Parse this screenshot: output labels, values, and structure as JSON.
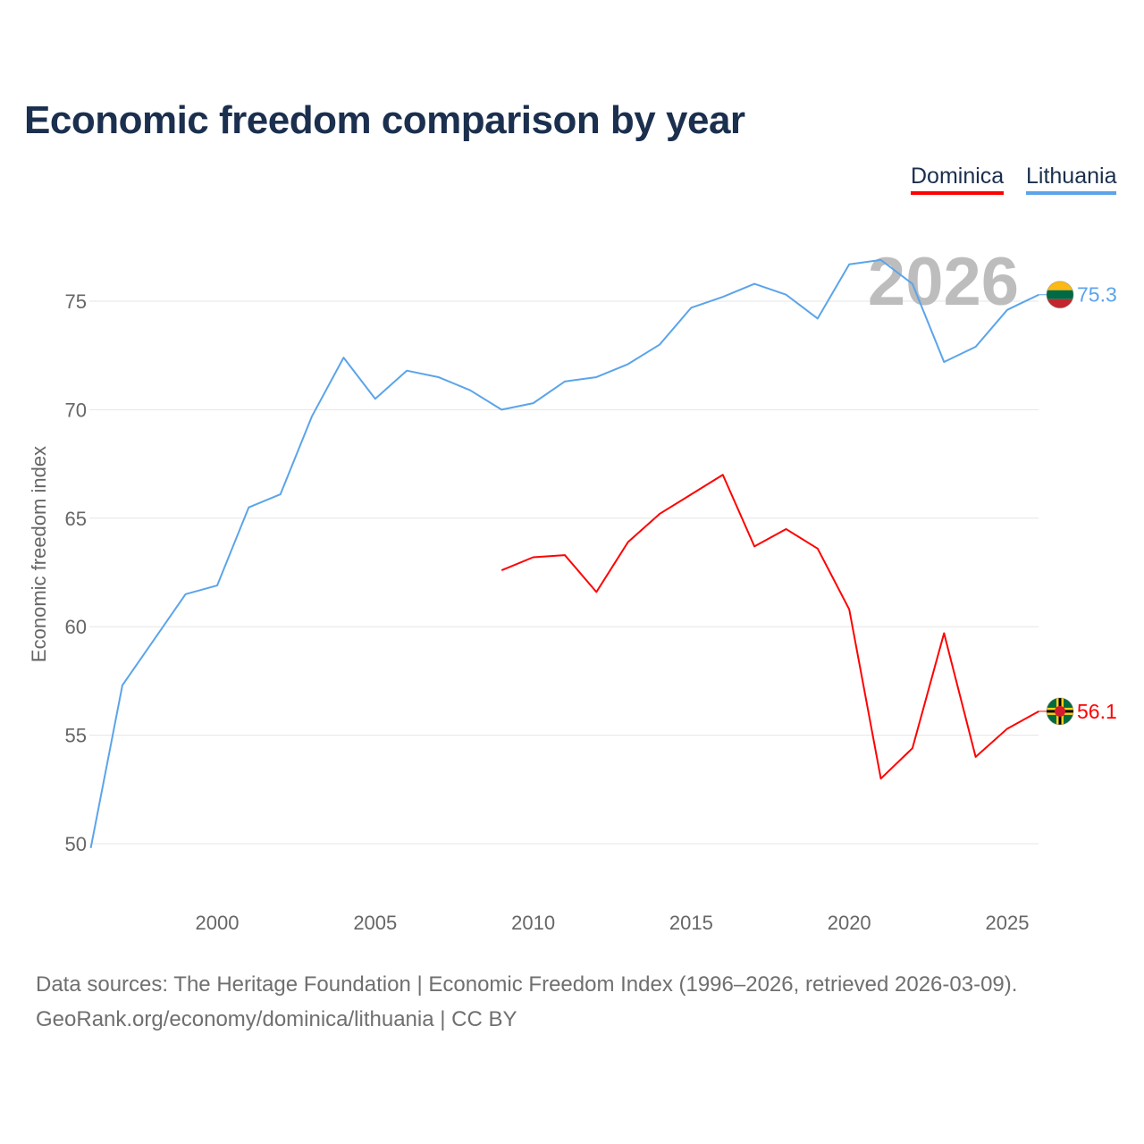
{
  "chart_data": {
    "type": "line",
    "title": "Economic freedom comparison by year",
    "xlabel": "",
    "ylabel": "Economic freedom index",
    "xlim": [
      1996,
      2026
    ],
    "ylim": [
      47.5,
      79
    ],
    "xticks": [
      2000,
      2005,
      2010,
      2015,
      2020,
      2025
    ],
    "yticks": [
      50,
      55,
      60,
      65,
      70,
      75
    ],
    "grid": true,
    "legend_placement": "top-right",
    "year_watermark": "2026",
    "series": [
      {
        "name": "Dominica",
        "color": "#ff0000",
        "end_label": "56.1",
        "x": [
          2009,
          2010,
          2011,
          2012,
          2013,
          2014,
          2015,
          2016,
          2017,
          2018,
          2019,
          2020,
          2021,
          2022,
          2023,
          2024,
          2025,
          2026
        ],
        "values": [
          62.6,
          63.2,
          63.3,
          61.6,
          63.9,
          65.2,
          66.1,
          67.0,
          63.7,
          64.5,
          63.6,
          60.8,
          53.0,
          54.4,
          59.7,
          54.0,
          55.3,
          56.1
        ]
      },
      {
        "name": "Lithuania",
        "color": "#5ba4ea",
        "end_label": "75.3",
        "x": [
          1996,
          1997,
          1998,
          1999,
          2000,
          2001,
          2002,
          2003,
          2004,
          2005,
          2006,
          2007,
          2008,
          2009,
          2010,
          2011,
          2012,
          2013,
          2014,
          2015,
          2016,
          2017,
          2018,
          2019,
          2020,
          2021,
          2022,
          2023,
          2024,
          2025,
          2026
        ],
        "values": [
          49.8,
          57.3,
          59.4,
          61.5,
          61.9,
          65.5,
          66.1,
          69.7,
          72.4,
          70.5,
          71.8,
          71.5,
          70.9,
          70.0,
          70.3,
          71.3,
          71.5,
          72.1,
          73.0,
          74.7,
          75.2,
          75.8,
          75.3,
          74.2,
          76.7,
          76.9,
          75.8,
          72.2,
          72.9,
          74.6,
          75.3
        ]
      }
    ]
  },
  "footer": {
    "source_line": "Data sources: The Heritage Foundation | Economic Freedom Index (1996–2026, retrieved 2026-03-09).",
    "url_line": "GeoRank.org/economy/dominica/lithuania | CC BY"
  }
}
